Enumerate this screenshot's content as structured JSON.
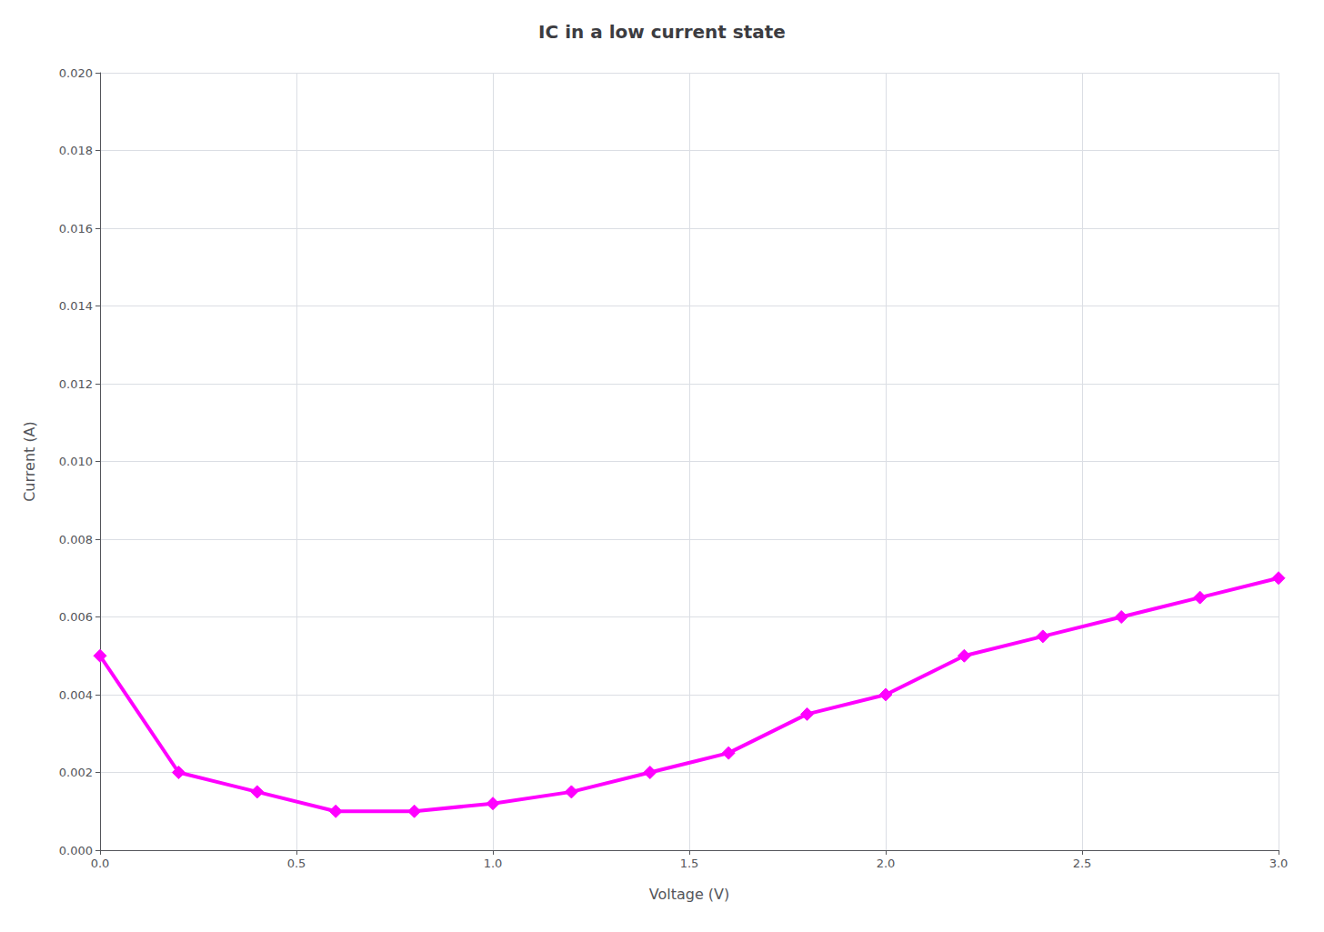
{
  "chart_data": {
    "type": "line",
    "title": "IC in a low current state",
    "xlabel": "Voltage (V)",
    "ylabel": "Current (A)",
    "x": [
      0.0,
      0.2,
      0.4,
      0.6,
      0.8,
      1.0,
      1.2,
      1.4,
      1.6,
      1.8,
      2.0,
      2.2,
      2.4,
      2.6,
      2.8,
      3.0
    ],
    "values": [
      0.005,
      0.002,
      0.0015,
      0.001,
      0.001,
      0.0012,
      0.0015,
      0.002,
      0.0025,
      0.0035,
      0.004,
      0.005,
      0.0055,
      0.006,
      0.0065,
      0.007
    ],
    "color": "#ff00ff",
    "marker": "diamond",
    "xlim": [
      0,
      3.0
    ],
    "ylim": [
      0,
      0.02
    ],
    "xticks": [
      {
        "value": 0,
        "label": "0.0"
      },
      0.5,
      {
        "value": 1,
        "label": "1.0"
      },
      1.5,
      {
        "value": 2,
        "label": "2.0"
      },
      2.5,
      {
        "value": 3,
        "label": "3.0"
      }
    ],
    "yticks": [
      {
        "value": 0,
        "label": "0.000"
      },
      0.002,
      0.004,
      0.006,
      0.008,
      {
        "value": 0.01,
        "label": "0.010"
      },
      0.012,
      0.014,
      0.016,
      0.018,
      {
        "value": 0.02,
        "label": "0.020"
      }
    ],
    "grid": true
  }
}
